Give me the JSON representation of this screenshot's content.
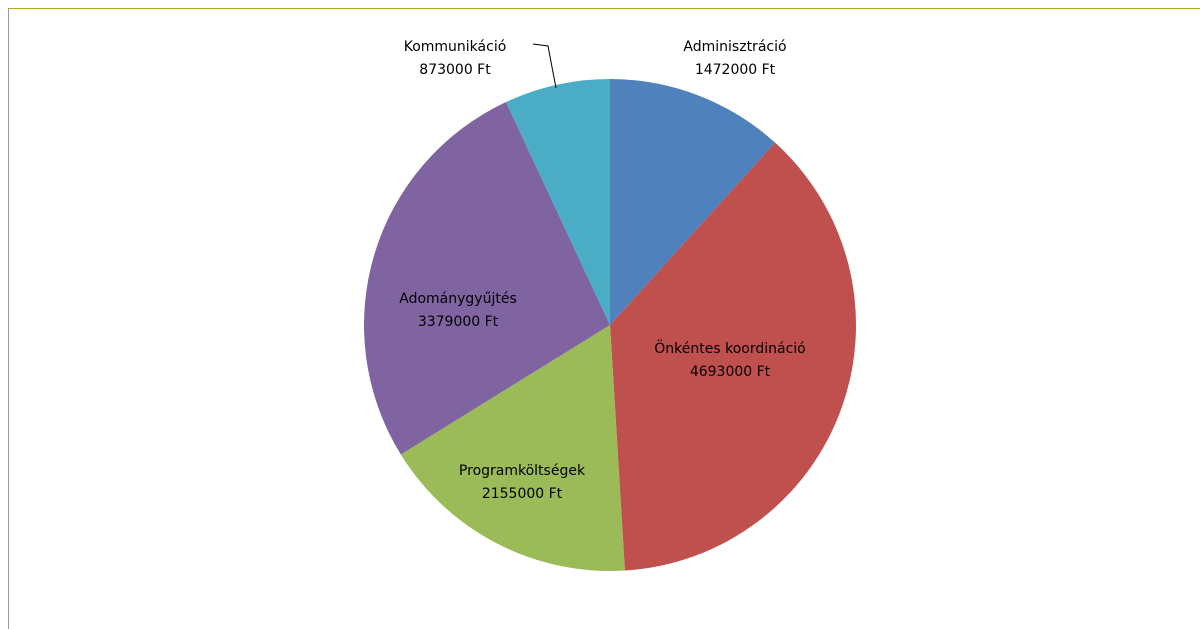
{
  "chart_data": {
    "type": "pie",
    "categories": [
      "Adminisztráció",
      "Önkéntes koordináció",
      "Programköltségek",
      "Adománygyűjtés",
      "Kommunikáció"
    ],
    "values": [
      1472000,
      4693000,
      2155000,
      3379000,
      873000
    ],
    "value_labels": [
      "1472000 Ft",
      "4693000 Ft",
      "2155000 Ft",
      "3379000 Ft",
      "873000 Ft"
    ],
    "colors": [
      "#4f81bd",
      "#c0504d",
      "#9bbb59",
      "#8064a2",
      "#4bacc6"
    ]
  }
}
